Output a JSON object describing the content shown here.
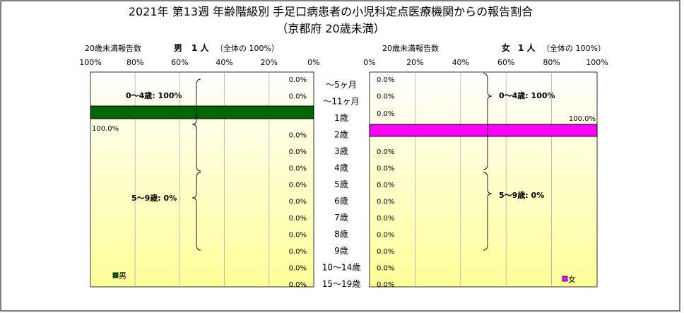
{
  "title_line1": "2021年 第13週 年齢階級別 手足口病患者の小児科定点医療機関からの報告割合",
  "title_line2": "（京都府 20歳未満）",
  "left": {
    "header_count_label": "20歳未満報告数",
    "header_sex": "男",
    "header_count": "1 人",
    "header_share": "（全体の 100%）",
    "legend": "男",
    "bracket_0_4": "0〜4歳: 100%",
    "bracket_5_9": "5〜9歳: 0%"
  },
  "right": {
    "header_count_label": "20歳未満報告数",
    "header_sex": "女",
    "header_count": "1 人",
    "header_share": "（全体の 100%）",
    "legend": "女",
    "bracket_0_4": "0〜4歳: 100%",
    "bracket_5_9": "5〜9歳: 0%"
  },
  "colors": {
    "male": "#006400",
    "female": "#ff00ff",
    "bg_top": "#ffffff",
    "bg_bottom": "#ffff99"
  },
  "chart_data": {
    "type": "bar",
    "orientation": "horizontal-butterfly",
    "categories": [
      "〜5ヶ月",
      "〜11ヶ月",
      "1歳",
      "2歳",
      "3歳",
      "4歳",
      "5歳",
      "6歳",
      "7歳",
      "8歳",
      "9歳",
      "10〜14歳",
      "15〜19歳"
    ],
    "x_ticks": [
      "100%",
      "80%",
      "60%",
      "40%",
      "20%",
      "0%"
    ],
    "x_ticks_right": [
      "0%",
      "20%",
      "40%",
      "60%",
      "80%",
      "100%"
    ],
    "xlim": [
      0,
      100
    ],
    "series": [
      {
        "name": "男",
        "side": "left",
        "values": [
          0,
          0,
          100,
          0,
          0,
          0,
          0,
          0,
          0,
          0,
          0,
          0,
          0
        ],
        "labels": [
          "0.0%",
          "0.0%",
          "100.0%",
          "0.0%",
          "0.0%",
          "0.0%",
          "0.0%",
          "0.0%",
          "0.0%",
          "0.0%",
          "0.0%",
          "0.0%",
          "0.0%"
        ]
      },
      {
        "name": "女",
        "side": "right",
        "values": [
          0,
          0,
          0,
          100,
          0,
          0,
          0,
          0,
          0,
          0,
          0,
          0,
          0
        ],
        "labels": [
          "0.0%",
          "0.0%",
          "0.0%",
          "100.0%",
          "0.0%",
          "0.0%",
          "0.0%",
          "0.0%",
          "0.0%",
          "0.0%",
          "0.0%",
          "0.0%",
          "0.0%"
        ]
      }
    ],
    "grid": "vertical"
  }
}
